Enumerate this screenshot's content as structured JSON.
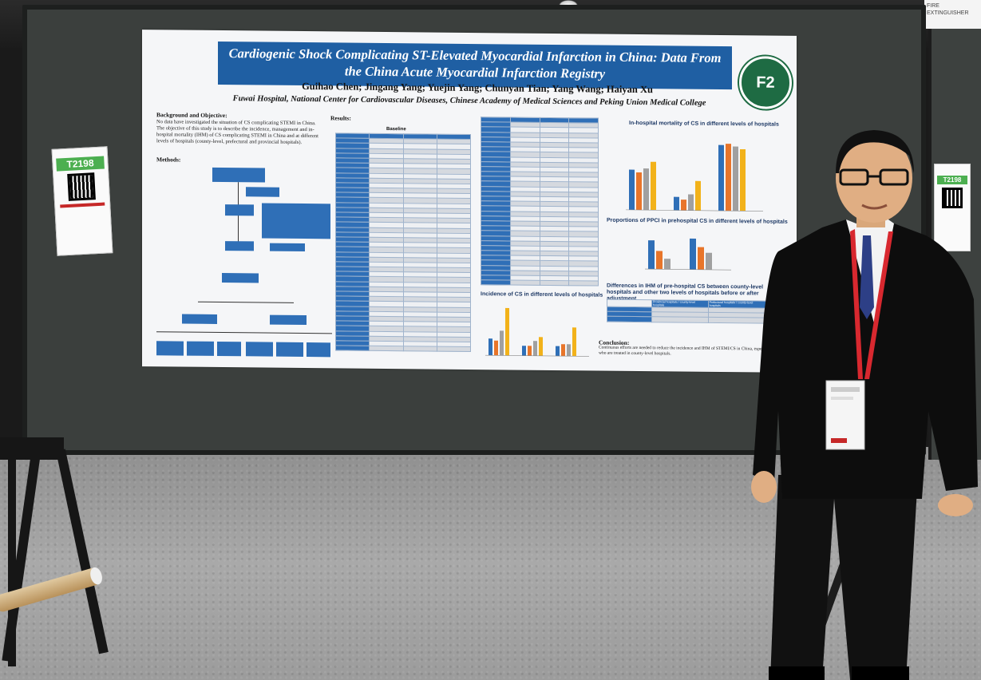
{
  "poster": {
    "title": "Cardiogenic Shock Complicating ST-Elevated Myocardial Infarction in China: Data From the China Acute Myocardial Infarction Registry",
    "authors": "Guihao Chen; Jingang Yang; Yuejin Yang; Chunyan Tian; Yang Wang; Haiyan Xu",
    "affiliation": "Fuwai Hospital, National Center for Cardiovascular Diseases, Chinese Academy of Medical Sciences and Peking Union Medical College",
    "logo_text": "F2",
    "background_heading": "Background and Objective:",
    "background_text": "No data have investigated the situation of CS complicating STEMI in China. The objective of this study is to describe the incidence, management and in-hospital mortality (IHM) of CS complicating STEMI in China and at different levels of hospitals (county-level, prefectural and provincial hospitals).",
    "methods_heading": "Methods:",
    "results_heading": "Results:",
    "baseline_heading": "Baseline",
    "chart_ihm_title": "In-hospital mortality of CS in different levels of hospitals",
    "chart_ppci_title": "Proportions of PPCI in prehospital CS in different levels of hospitals",
    "chart_incidence_title": "Incidence of CS in different levels of hospitals",
    "differences_title": "Differences in IHM of pre-hospital CS between county-level hospitals and other two levels of hospitals before or after adjustment",
    "diff_headers": [
      "Provincial hospitals / county-level hospitals",
      "Prefectural hospitals / county-level hospitals"
    ],
    "conclusion_heading": "Conclusion:",
    "conclusion_text": "Continuous efforts are needed to reduce the incidence and IHM of STEMI/CS in China, especially those who are treated in county-level hospitals."
  },
  "tags": {
    "left_code": "T2198",
    "right_code": "T2198"
  },
  "signs": {
    "top_right": "FIRE EXTINGUISHER"
  },
  "colors": {
    "poster_title_bg": "#1f5fa3",
    "table_header": "#2f6fb7",
    "bar_blue": "#2f6fb7",
    "bar_orange": "#e8752a",
    "bar_gray": "#a0a0a0",
    "bar_gold": "#f2b21a",
    "logo_green": "#1e6b43",
    "board": "#3b3f3d",
    "tag_green": "#4caf50"
  },
  "person": {
    "description_icons": [
      "glasses-icon",
      "lanyard-icon",
      "badge-icon"
    ]
  }
}
